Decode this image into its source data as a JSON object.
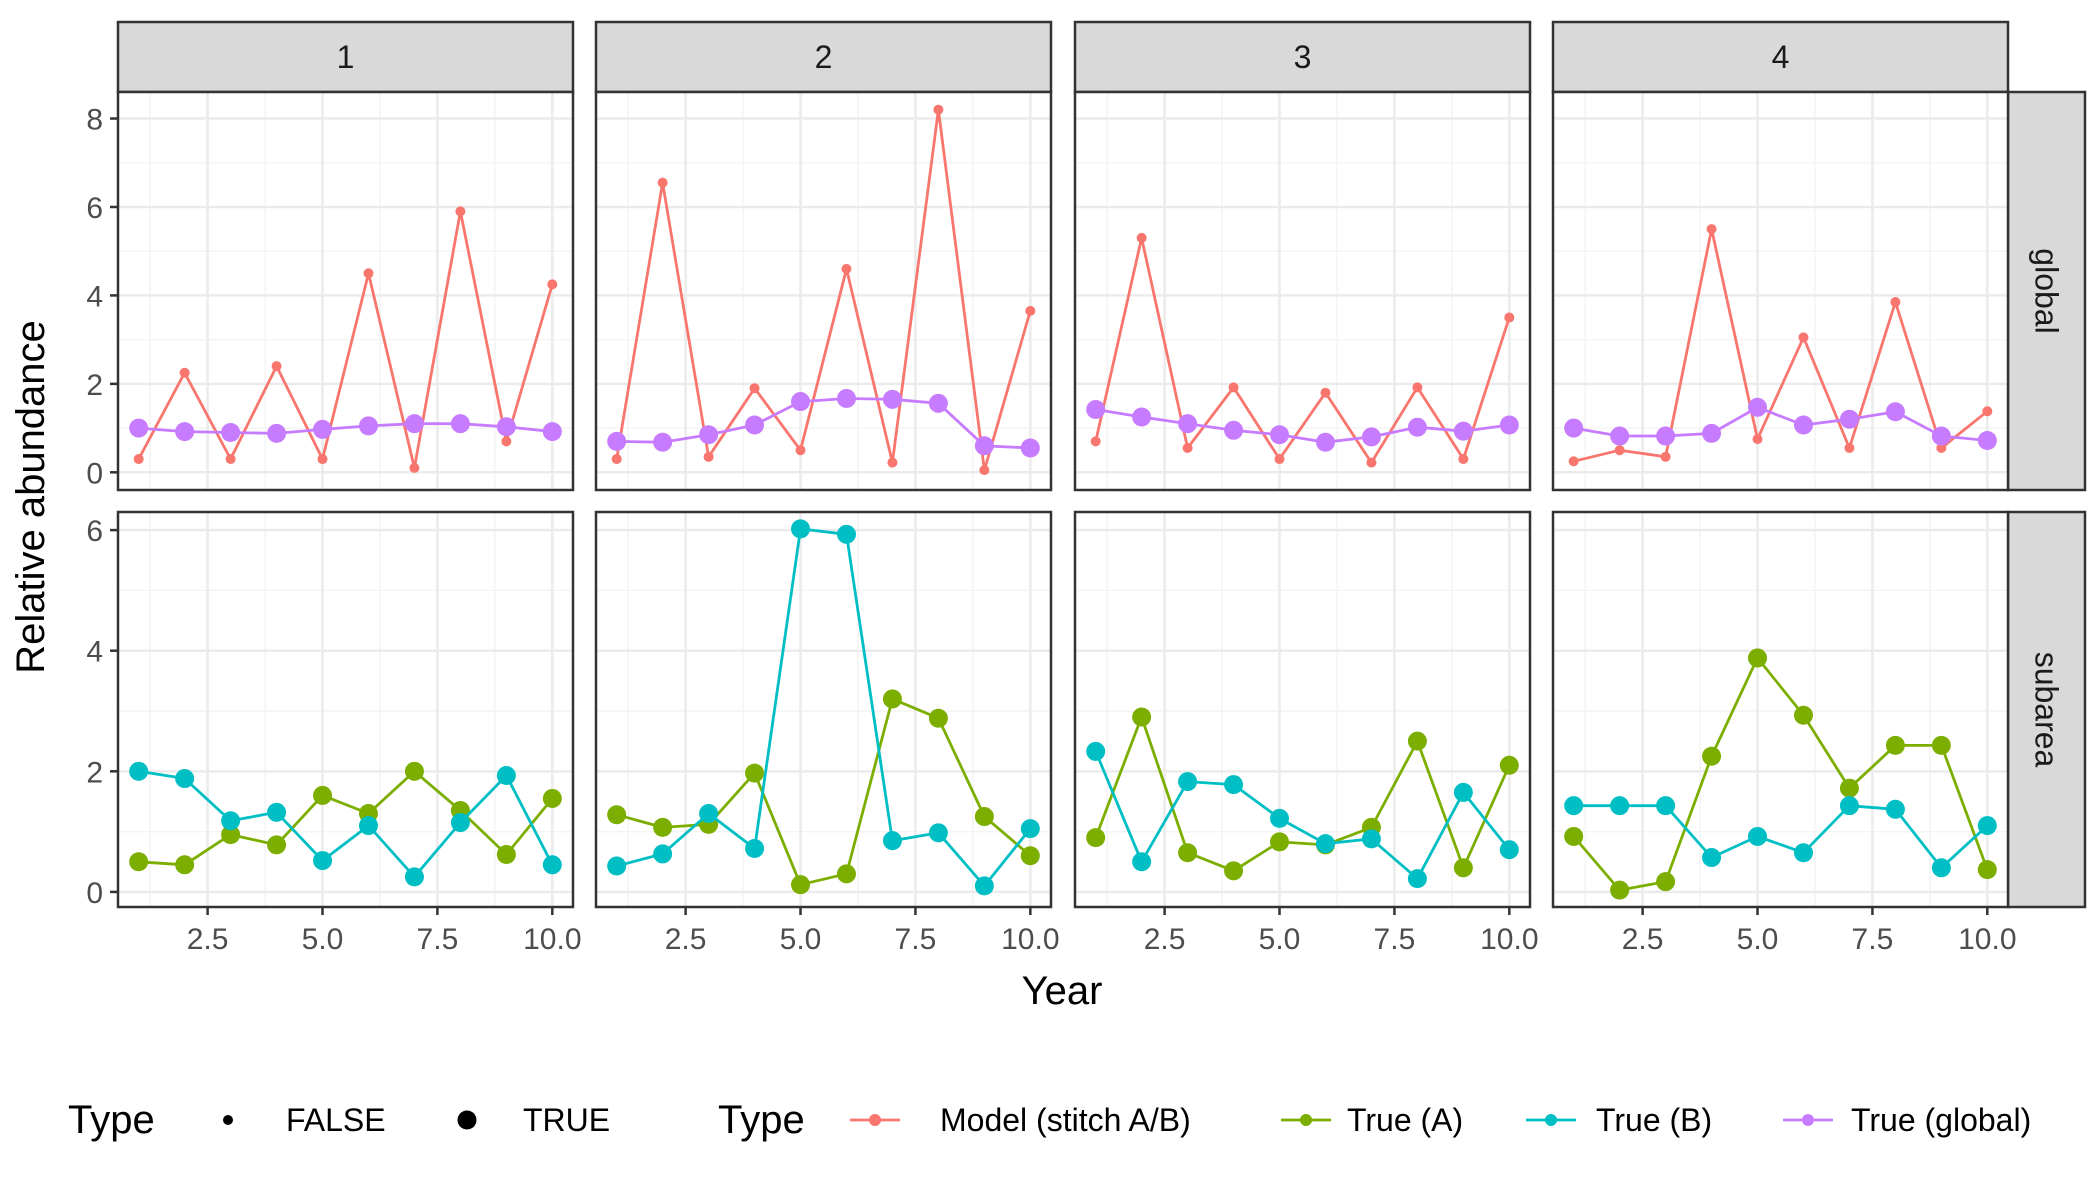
{
  "colors": {
    "model": "#F8766D",
    "true_a": "#7CAE00",
    "true_b": "#00BFC4",
    "true_global": "#C77CFF",
    "strip_fill": "#D9D9D9",
    "grid_major": "#EBEBEB",
    "grid_minor": "#F4F4F4",
    "axis_text": "#4D4D4D"
  },
  "legend": {
    "size_title": "Type",
    "size_items": [
      "FALSE",
      "TRUE"
    ],
    "color_title": "Type",
    "color_items": [
      "Model (stitch A/B)",
      "True (A)",
      "True (B)",
      "True (global)"
    ]
  },
  "chart_data": {
    "type": "line",
    "xlabel": "Year",
    "ylabel": "Relative abundance",
    "x": [
      1,
      2,
      3,
      4,
      5,
      6,
      7,
      8,
      9,
      10
    ],
    "x_ticks": [
      "2.5",
      "5.0",
      "7.5",
      "10.0"
    ],
    "x_tick_values": [
      2.5,
      5.0,
      7.5,
      10.0
    ],
    "xlim": [
      0.55,
      10.45
    ],
    "columns": [
      "1",
      "2",
      "3",
      "4"
    ],
    "rows": [
      {
        "name": "global",
        "ylim": [
          -0.4,
          8.6
        ],
        "y_ticks": [
          "0",
          "2",
          "4",
          "6",
          "8"
        ],
        "y_tick_values": [
          0,
          2,
          4,
          6,
          8
        ]
      },
      {
        "name": "subarea",
        "ylim": [
          -0.25,
          6.3
        ],
        "y_ticks": [
          "0",
          "2",
          "4",
          "6"
        ],
        "y_tick_values": [
          0,
          2,
          4,
          6
        ]
      }
    ],
    "grid": true,
    "legend_position": "bottom",
    "panels": [
      {
        "column": "1",
        "row": "global",
        "series": [
          {
            "key": "model",
            "size": "FALSE",
            "values": [
              0.3,
              2.25,
              0.3,
              2.4,
              0.3,
              4.5,
              0.1,
              5.9,
              0.7,
              4.25
            ]
          },
          {
            "key": "true_global",
            "size": "TRUE",
            "values": [
              1.0,
              0.92,
              0.9,
              0.88,
              0.97,
              1.05,
              1.1,
              1.1,
              1.03,
              0.92
            ]
          }
        ]
      },
      {
        "column": "2",
        "row": "global",
        "series": [
          {
            "key": "model",
            "size": "FALSE",
            "values": [
              0.3,
              6.55,
              0.35,
              1.9,
              0.5,
              4.6,
              0.22,
              8.2,
              0.05,
              3.65
            ]
          },
          {
            "key": "true_global",
            "size": "TRUE",
            "values": [
              0.7,
              0.68,
              0.85,
              1.07,
              1.6,
              1.67,
              1.65,
              1.56,
              0.6,
              0.55
            ]
          }
        ]
      },
      {
        "column": "3",
        "row": "global",
        "series": [
          {
            "key": "model",
            "size": "FALSE",
            "values": [
              0.7,
              5.3,
              0.55,
              1.92,
              0.3,
              1.8,
              0.22,
              1.92,
              0.3,
              3.5
            ]
          },
          {
            "key": "true_global",
            "size": "TRUE",
            "values": [
              1.42,
              1.25,
              1.1,
              0.95,
              0.85,
              0.68,
              0.8,
              1.02,
              0.93,
              1.07
            ]
          }
        ]
      },
      {
        "column": "4",
        "row": "global",
        "series": [
          {
            "key": "model",
            "size": "FALSE",
            "values": [
              0.25,
              0.5,
              0.35,
              5.5,
              0.75,
              3.05,
              0.55,
              3.85,
              0.55,
              1.38
            ]
          },
          {
            "key": "true_global",
            "size": "TRUE",
            "values": [
              1.0,
              0.82,
              0.82,
              0.88,
              1.47,
              1.07,
              1.2,
              1.37,
              0.82,
              0.72
            ]
          }
        ]
      },
      {
        "column": "1",
        "row": "subarea",
        "series": [
          {
            "key": "true_a",
            "size": "TRUE",
            "values": [
              0.5,
              0.45,
              0.95,
              0.78,
              1.6,
              1.3,
              2.0,
              1.35,
              0.62,
              1.55
            ]
          },
          {
            "key": "true_b",
            "size": "TRUE",
            "values": [
              2.0,
              1.88,
              1.18,
              1.32,
              0.52,
              1.1,
              0.25,
              1.15,
              1.93,
              0.45
            ]
          }
        ]
      },
      {
        "column": "2",
        "row": "subarea",
        "series": [
          {
            "key": "true_a",
            "size": "TRUE",
            "values": [
              1.28,
              1.07,
              1.12,
              1.97,
              0.12,
              0.3,
              3.2,
              2.88,
              1.25,
              0.6
            ]
          },
          {
            "key": "true_b",
            "size": "TRUE",
            "values": [
              0.43,
              0.63,
              1.3,
              0.72,
              6.02,
              5.93,
              0.85,
              0.98,
              0.1,
              1.05
            ]
          }
        ]
      },
      {
        "column": "3",
        "row": "subarea",
        "series": [
          {
            "key": "true_a",
            "size": "TRUE",
            "values": [
              0.9,
              2.9,
              0.65,
              0.35,
              0.83,
              0.78,
              1.07,
              2.5,
              0.4,
              2.1
            ]
          },
          {
            "key": "true_b",
            "size": "TRUE",
            "values": [
              2.33,
              0.5,
              1.83,
              1.78,
              1.22,
              0.8,
              0.88,
              0.22,
              1.65,
              0.7
            ]
          }
        ]
      },
      {
        "column": "4",
        "row": "subarea",
        "series": [
          {
            "key": "true_a",
            "size": "TRUE",
            "values": [
              0.92,
              0.03,
              0.17,
              2.25,
              3.88,
              2.93,
              1.72,
              2.43,
              2.43,
              0.37
            ]
          },
          {
            "key": "true_b",
            "size": "TRUE",
            "values": [
              1.43,
              1.43,
              1.43,
              0.57,
              0.92,
              0.65,
              1.43,
              1.37,
              0.4,
              1.1
            ]
          }
        ]
      }
    ]
  }
}
